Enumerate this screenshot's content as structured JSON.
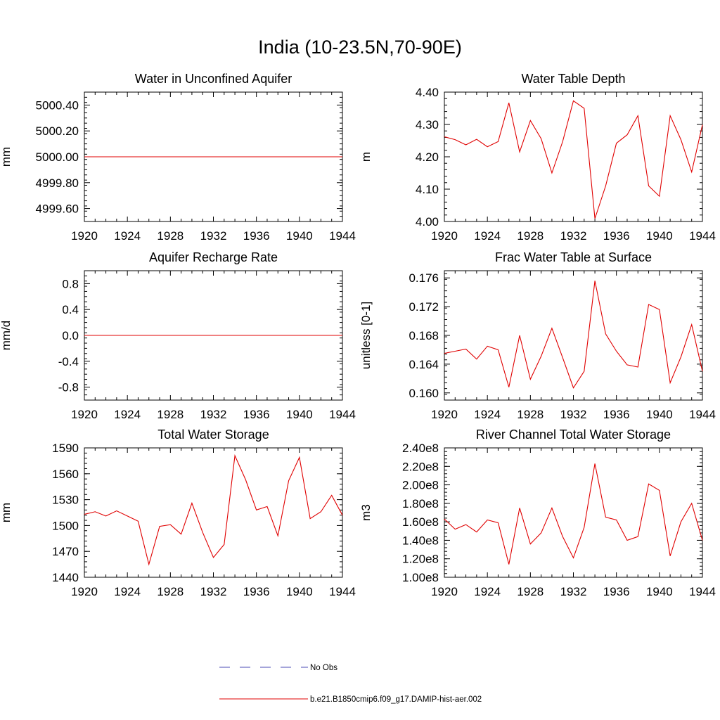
{
  "title": "India (10-23.5N,70-90E)",
  "legend": {
    "entries": [
      {
        "label": "No Obs",
        "color": "#4b4bb4",
        "style": "dashed"
      },
      {
        "label": "b.e21.B1850cmip6.f09_g17.DAMIP-hist-aer.002",
        "color": "#e00000",
        "style": "solid"
      }
    ]
  },
  "chart_data": [
    {
      "type": "line",
      "title": "Water in Unconfined Aquifer",
      "ylabel": "mm",
      "xlabel": "",
      "xlim": [
        1920,
        1944
      ],
      "ylim": [
        4999.5,
        5000.5
      ],
      "xticks": [
        "1920",
        "1924",
        "1928",
        "1932",
        "1936",
        "1940",
        "1944"
      ],
      "yticks": [
        {
          "value": 5000.4,
          "label": "5000.40"
        },
        {
          "value": 5000.2,
          "label": "5000.20"
        },
        {
          "value": 5000.0,
          "label": "5000.00"
        },
        {
          "value": 4999.8,
          "label": "4999.80"
        },
        {
          "value": 4999.6,
          "label": "4999.60"
        }
      ],
      "series": [
        {
          "color": "#e00000",
          "x": [
            1920,
            1921,
            1922,
            1923,
            1924,
            1925,
            1926,
            1927,
            1928,
            1929,
            1930,
            1931,
            1932,
            1933,
            1934,
            1935,
            1936,
            1937,
            1938,
            1939,
            1940,
            1941,
            1942,
            1943,
            1944
          ],
          "y": [
            5000,
            5000,
            5000,
            5000,
            5000,
            5000,
            5000,
            5000,
            5000,
            5000,
            5000,
            5000,
            5000,
            5000,
            5000,
            5000,
            5000,
            5000,
            5000,
            5000,
            5000,
            5000,
            5000,
            5000,
            5000
          ]
        }
      ]
    },
    {
      "type": "line",
      "title": "Water Table Depth",
      "ylabel": "m",
      "xlabel": "",
      "xlim": [
        1920,
        1944
      ],
      "ylim": [
        4.0,
        4.4
      ],
      "xticks": [
        "1920",
        "1924",
        "1928",
        "1932",
        "1936",
        "1940",
        "1944"
      ],
      "yticks": [
        {
          "value": 4.4,
          "label": "4.40"
        },
        {
          "value": 4.3,
          "label": "4.30"
        },
        {
          "value": 4.2,
          "label": "4.20"
        },
        {
          "value": 4.1,
          "label": "4.10"
        },
        {
          "value": 4.0,
          "label": "4.00"
        }
      ],
      "series": [
        {
          "color": "#e00000",
          "x": [
            1920,
            1921,
            1922,
            1923,
            1924,
            1925,
            1926,
            1927,
            1928,
            1929,
            1930,
            1931,
            1932,
            1933,
            1934,
            1935,
            1936,
            1937,
            1938,
            1939,
            1940,
            1941,
            1942,
            1943,
            1944
          ],
          "y": [
            4.262,
            4.253,
            4.237,
            4.254,
            4.231,
            4.247,
            4.367,
            4.215,
            4.312,
            4.256,
            4.15,
            4.247,
            4.373,
            4.35,
            4.009,
            4.11,
            4.242,
            4.268,
            4.327,
            4.11,
            4.078,
            4.327,
            4.253,
            4.153,
            4.299
          ]
        }
      ]
    },
    {
      "type": "line",
      "title": "Aquifer Recharge Rate",
      "ylabel": "mm/d",
      "xlabel": "",
      "xlim": [
        1920,
        1944
      ],
      "ylim": [
        -1.0,
        1.0
      ],
      "xticks": [
        "1920",
        "1924",
        "1928",
        "1932",
        "1936",
        "1940",
        "1944"
      ],
      "yticks": [
        {
          "value": 0.8,
          "label": "0.8"
        },
        {
          "value": 0.4,
          "label": "0.4"
        },
        {
          "value": 0.0,
          "label": "0.0"
        },
        {
          "value": -0.4,
          "label": "-0.4"
        },
        {
          "value": -0.8,
          "label": "-0.8"
        }
      ],
      "series": [
        {
          "color": "#e00000",
          "x": [
            1920,
            1921,
            1922,
            1923,
            1924,
            1925,
            1926,
            1927,
            1928,
            1929,
            1930,
            1931,
            1932,
            1933,
            1934,
            1935,
            1936,
            1937,
            1938,
            1939,
            1940,
            1941,
            1942,
            1943,
            1944
          ],
          "y": [
            0,
            0,
            0,
            0,
            0,
            0,
            0,
            0,
            0,
            0,
            0,
            0,
            0,
            0,
            0,
            0,
            0,
            0,
            0,
            0,
            0,
            0,
            0,
            0,
            0
          ]
        }
      ]
    },
    {
      "type": "line",
      "title": "Frac Water Table at Surface",
      "ylabel": "unitless [0-1]",
      "xlabel": "",
      "xlim": [
        1920,
        1944
      ],
      "ylim": [
        0.159,
        0.177
      ],
      "xticks": [
        "1920",
        "1924",
        "1928",
        "1932",
        "1936",
        "1940",
        "1944"
      ],
      "yticks": [
        {
          "value": 0.176,
          "label": "0.176"
        },
        {
          "value": 0.172,
          "label": "0.172"
        },
        {
          "value": 0.168,
          "label": "0.168"
        },
        {
          "value": 0.164,
          "label": "0.164"
        },
        {
          "value": 0.16,
          "label": "0.160"
        }
      ],
      "series": [
        {
          "color": "#e00000",
          "x": [
            1920,
            1921,
            1922,
            1923,
            1924,
            1925,
            1926,
            1927,
            1928,
            1929,
            1930,
            1931,
            1932,
            1933,
            1934,
            1935,
            1936,
            1937,
            1938,
            1939,
            1940,
            1941,
            1942,
            1943,
            1944
          ],
          "y": [
            0.1655,
            0.1658,
            0.1661,
            0.1647,
            0.1665,
            0.166,
            0.1608,
            0.168,
            0.1619,
            0.1651,
            0.169,
            0.1649,
            0.1607,
            0.163,
            0.1756,
            0.1682,
            0.1658,
            0.1639,
            0.1636,
            0.1723,
            0.1716,
            0.1614,
            0.165,
            0.1695,
            0.163
          ]
        }
      ]
    },
    {
      "type": "line",
      "title": "Total Water Storage",
      "ylabel": "mm",
      "xlabel": "",
      "xlim": [
        1920,
        1944
      ],
      "ylim": [
        1440,
        1590
      ],
      "xticks": [
        "1920",
        "1924",
        "1928",
        "1932",
        "1936",
        "1940",
        "1944"
      ],
      "yticks": [
        {
          "value": 1590,
          "label": "1590"
        },
        {
          "value": 1560,
          "label": "1560"
        },
        {
          "value": 1530,
          "label": "1530"
        },
        {
          "value": 1500,
          "label": "1500"
        },
        {
          "value": 1470,
          "label": "1470"
        },
        {
          "value": 1440,
          "label": "1440"
        }
      ],
      "series": [
        {
          "color": "#e00000",
          "x": [
            1920,
            1921,
            1922,
            1923,
            1924,
            1925,
            1926,
            1927,
            1928,
            1929,
            1930,
            1931,
            1932,
            1933,
            1934,
            1935,
            1936,
            1937,
            1938,
            1939,
            1940,
            1941,
            1942,
            1943,
            1944
          ],
          "y": [
            1513,
            1516,
            1511,
            1517,
            1511,
            1505,
            1455,
            1499,
            1501,
            1490,
            1526,
            1492,
            1463,
            1478,
            1581,
            1553,
            1518,
            1522,
            1488,
            1552,
            1579,
            1508,
            1516,
            1535,
            1512
          ]
        }
      ]
    },
    {
      "type": "line",
      "title": "River Channel Total Water Storage",
      "ylabel": "m3",
      "xlabel": "",
      "xlim": [
        1920,
        1944
      ],
      "ylim": [
        100000000,
        240000000
      ],
      "xticks": [
        "1920",
        "1924",
        "1928",
        "1932",
        "1936",
        "1940",
        "1944"
      ],
      "yticks": [
        {
          "value": 240000000,
          "label": "2.40e8"
        },
        {
          "value": 220000000,
          "label": "2.20e8"
        },
        {
          "value": 200000000,
          "label": "2.00e8"
        },
        {
          "value": 180000000,
          "label": "1.80e8"
        },
        {
          "value": 160000000,
          "label": "1.60e8"
        },
        {
          "value": 140000000,
          "label": "1.40e8"
        },
        {
          "value": 120000000,
          "label": "1.20e8"
        },
        {
          "value": 100000000,
          "label": "1.00e8"
        }
      ],
      "series": [
        {
          "color": "#e00000",
          "x": [
            1920,
            1921,
            1922,
            1923,
            1924,
            1925,
            1926,
            1927,
            1928,
            1929,
            1930,
            1931,
            1932,
            1933,
            1934,
            1935,
            1936,
            1937,
            1938,
            1939,
            1940,
            1941,
            1942,
            1943,
            1944
          ],
          "y": [
            163000000,
            152000000,
            157000000,
            149000000,
            162000000,
            159000000,
            114000000,
            175000000,
            136000000,
            148000000,
            175000000,
            144000000,
            121000000,
            154000000,
            223000000,
            165000000,
            162000000,
            140000000,
            144000000,
            201000000,
            194000000,
            123000000,
            160000000,
            180000000,
            140000000
          ]
        }
      ]
    }
  ]
}
